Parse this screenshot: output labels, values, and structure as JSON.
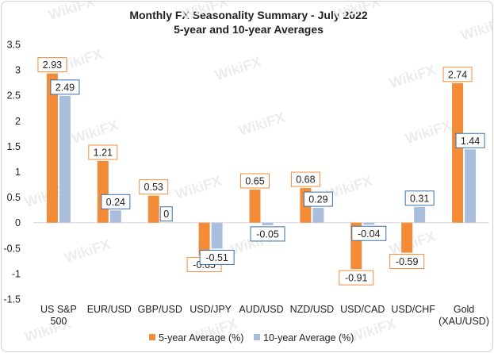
{
  "chart_data": {
    "type": "bar",
    "title": "Monthly FX Seasonality Summary - July 2022",
    "subtitle": "5-year and 10-year Averages",
    "categories": [
      "US S&P 500",
      "EUR/USD",
      "GBP/USD",
      "USD/JPY",
      "AUD/USD",
      "NZD/USD",
      "USD/CAD",
      "USD/CHF",
      "Gold (XAU/USD)"
    ],
    "category_lines": [
      [
        "US S&P",
        "500"
      ],
      [
        "EUR/USD"
      ],
      [
        "GBP/USD"
      ],
      [
        "USD/JPY"
      ],
      [
        "AUD/USD"
      ],
      [
        "NZD/USD"
      ],
      [
        "USD/CAD"
      ],
      [
        "USD/CHF"
      ],
      [
        "Gold",
        "(XAU/USD)"
      ]
    ],
    "series": [
      {
        "name": "5-year Average (%)",
        "color": "#f28c38",
        "label_border": "#f28c38",
        "values": [
          2.93,
          1.21,
          0.53,
          -0.65,
          0.65,
          0.68,
          -0.91,
          -0.59,
          2.74
        ],
        "labels": [
          "2.93",
          "1.21",
          "0.53",
          "-0.65",
          "0.65",
          "0.68",
          "-0.91",
          "-0.59",
          "2.74"
        ]
      },
      {
        "name": "10-year Average (%)",
        "color": "#a9bedc",
        "label_border": "#3a6ea5",
        "values": [
          2.49,
          0.24,
          0,
          -0.51,
          -0.05,
          0.29,
          -0.04,
          0.31,
          1.44
        ],
        "labels": [
          "2.49",
          "0.24",
          "0",
          "-0.51",
          "-0.05",
          "0.29",
          "-0.04",
          "0.31",
          "1.44"
        ]
      }
    ],
    "ylim": [
      -1.5,
      3.5
    ],
    "yticks": [
      -1.5,
      -1,
      -0.5,
      0,
      0.5,
      1,
      1.5,
      2,
      2.5,
      3,
      3.5
    ],
    "ytick_labels": [
      "-1.5",
      "-1",
      "-0.5",
      "0",
      "0.5",
      "1",
      "1.5",
      "2",
      "2.5",
      "3",
      "3.5"
    ],
    "grid": false,
    "legend": "bottom",
    "watermark": "WikiFX"
  }
}
